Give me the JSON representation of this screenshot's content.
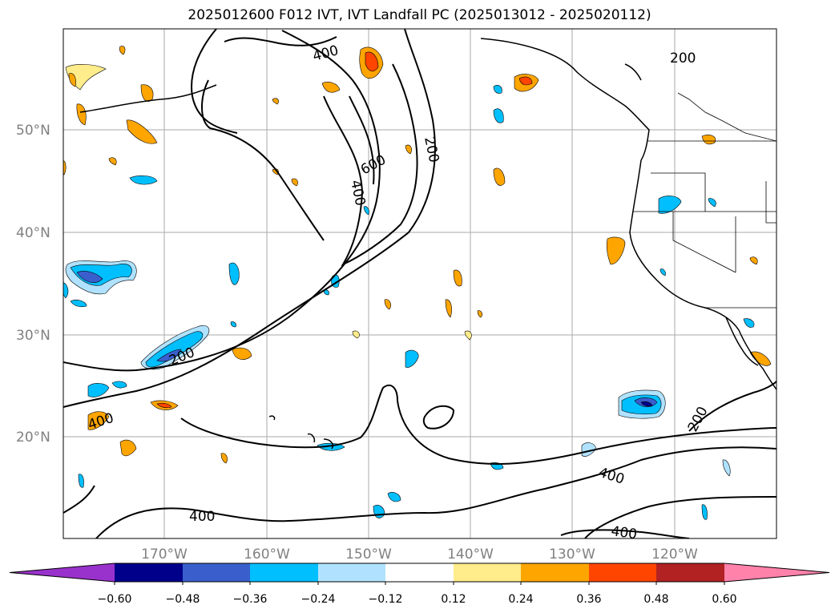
{
  "title": "2025012600 F012 IVT, IVT Landfall PC (2025013012 - 2025020112)",
  "map": {
    "lat_labels": [
      "50°N",
      "40°N",
      "30°N",
      "20°N"
    ],
    "lon_labels": [
      "170°W",
      "160°W",
      "150°W",
      "140°W",
      "130°W",
      "120°W"
    ],
    "contour_labels": [
      "400",
      "600",
      "400",
      "200",
      "200",
      "200",
      "400",
      "200",
      "400",
      "400",
      "400"
    ]
  },
  "colorbar": {
    "colors": [
      "#9932cc",
      "#00008b",
      "#3a5fcd",
      "#00bfff",
      "#b0e2ff",
      "#ffffff",
      "#ffec8b",
      "#ffa500",
      "#ff4500",
      "#b22222",
      "#ff82ab"
    ],
    "tick_labels": [
      "−0.60",
      "−0.48",
      "−0.36",
      "−0.24",
      "−0.12",
      "0.12",
      "0.24",
      "0.36",
      "0.48",
      "0.60"
    ]
  }
}
